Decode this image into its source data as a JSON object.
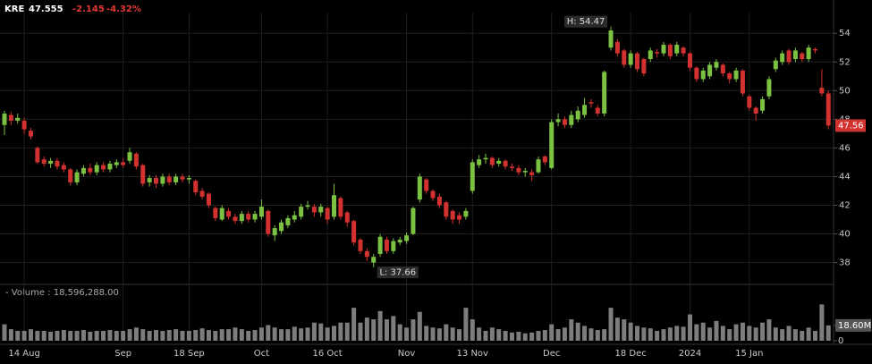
{
  "chart_data": {
    "type": "candlestick",
    "header": {
      "ticker": "KRE",
      "last": "47.555",
      "change": "-2.145",
      "change_pct": "-4.32%"
    },
    "high_label": "H: 54.47",
    "low_label": "L: 37.66",
    "last_price": 47.56,
    "volume_legend": "- Volume : 18,596,288.00",
    "up_color": "#7cc242",
    "down_color": "#d1322f",
    "volume_color": "#7d7d7d",
    "grid": true,
    "ylim": [
      36.6,
      55.2
    ],
    "yticks": [
      38,
      40,
      42,
      44,
      46,
      48,
      50,
      52,
      54
    ],
    "y2lim": [
      0,
      64000000
    ],
    "y2ticks": [
      0,
      {
        "value": 18600000,
        "label": "18.60M"
      }
    ],
    "categories": [
      null,
      null,
      null,
      "14 Aug",
      null,
      null,
      null,
      null,
      null,
      null,
      null,
      null,
      null,
      null,
      null,
      null,
      null,
      null,
      "Sep",
      null,
      null,
      null,
      null,
      null,
      null,
      null,
      null,
      null,
      "18 Sep",
      null,
      null,
      null,
      null,
      null,
      null,
      null,
      null,
      null,
      null,
      "Oct",
      null,
      null,
      null,
      null,
      null,
      null,
      null,
      null,
      null,
      "16 Oct",
      null,
      null,
      null,
      null,
      null,
      null,
      null,
      null,
      null,
      null,
      null,
      "Nov",
      null,
      null,
      null,
      null,
      null,
      null,
      null,
      null,
      null,
      "13 Nov",
      null,
      null,
      null,
      null,
      null,
      null,
      null,
      null,
      null,
      null,
      null,
      "Dec",
      null,
      null,
      null,
      null,
      null,
      null,
      null,
      null,
      null,
      null,
      null,
      "18 Dec",
      null,
      null,
      null,
      null,
      null,
      null,
      null,
      null,
      "2024",
      null,
      null,
      null,
      null,
      null,
      null,
      null,
      null,
      "15 Jan",
      null,
      null,
      null,
      null,
      null,
      null,
      null,
      null,
      null,
      null,
      null,
      null
    ],
    "open": [
      47.6,
      48.3,
      47.9,
      47.9,
      47.2,
      46.0,
      45.2,
      44.9,
      45.1,
      44.8,
      44.5,
      43.6,
      44.2,
      44.6,
      44.3,
      44.8,
      44.5,
      44.8,
      45.0,
      45.1,
      45.6,
      44.8,
      43.6,
      43.9,
      43.5,
      44.0,
      43.6,
      44.0,
      43.8,
      43.7,
      43.0,
      42.8,
      41.8,
      41.0,
      41.6,
      41.2,
      40.9,
      41.4,
      41.0,
      41.2,
      41.6,
      39.9,
      40.2,
      40.6,
      41.0,
      41.2,
      41.9,
      41.9,
      41.5,
      41.8,
      41.2,
      42.5,
      41.5,
      40.9,
      39.6,
      38.8,
      38.0,
      38.6,
      39.6,
      38.8,
      39.4,
      39.5,
      40.0,
      42.4,
      43.8,
      43.0,
      42.6,
      42.2,
      41.6,
      41.3,
      41.2,
      43.0,
      44.8,
      45.2,
      45.3,
      44.9,
      45.1,
      44.7,
      44.6,
      44.3,
      44.3,
      44.3,
      45.4,
      44.6,
      47.8,
      48.0,
      47.6,
      48.0,
      48.3,
      49.2,
      48.8,
      48.4,
      53.0,
      53.4,
      52.8,
      51.8,
      52.6,
      52.2,
      52.2,
      52.7,
      52.6,
      53.2,
      52.6,
      53.0,
      52.6,
      51.6,
      50.8,
      51.0,
      51.6,
      51.8,
      51.2,
      50.8,
      51.4,
      49.6,
      48.8,
      48.6,
      49.6,
      51.5,
      52.0,
      52.8,
      52.2,
      52.6,
      52.2,
      52.9,
      50.2,
      49.8
    ],
    "high": [
      48.6,
      48.5,
      48.4,
      48.1,
      47.4,
      46.1,
      45.4,
      45.3,
      45.3,
      45.0,
      44.6,
      44.5,
      44.8,
      44.9,
      45.0,
      45.0,
      45.1,
      45.2,
      45.3,
      46.0,
      45.7,
      44.9,
      44.1,
      44.1,
      44.2,
      44.2,
      44.2,
      44.2,
      44.1,
      43.8,
      43.2,
      42.9,
      41.9,
      42.0,
      41.8,
      41.4,
      41.6,
      41.6,
      41.6,
      42.4,
      41.7,
      40.6,
      41.0,
      41.3,
      41.6,
      42.1,
      42.3,
      42.1,
      42.1,
      41.9,
      43.5,
      42.6,
      41.6,
      41.0,
      39.7,
      39.0,
      38.6,
      40.0,
      39.8,
      39.7,
      39.8,
      40.1,
      41.9,
      44.2,
      43.9,
      43.1,
      42.8,
      42.3,
      41.7,
      41.5,
      41.8,
      45.2,
      45.5,
      45.6,
      45.4,
      45.3,
      45.2,
      44.9,
      44.8,
      44.6,
      44.5,
      45.4,
      45.5,
      48.0,
      48.4,
      48.2,
      48.6,
      48.9,
      49.5,
      49.4,
      49.0,
      51.4,
      54.47,
      53.6,
      52.9,
      52.8,
      52.7,
      52.3,
      53.0,
      52.9,
      53.4,
      53.3,
      53.4,
      53.1,
      52.7,
      51.7,
      51.6,
      52.0,
      52.2,
      51.9,
      51.3,
      51.6,
      51.5,
      49.7,
      48.9,
      49.6,
      51.0,
      52.3,
      52.8,
      52.9,
      53.0,
      52.7,
      53.2,
      53.0,
      51.5,
      50.0
    ],
    "low": [
      46.9,
      47.6,
      47.7,
      47.0,
      46.6,
      44.9,
      44.7,
      44.6,
      44.5,
      44.3,
      43.4,
      43.4,
      44.0,
      44.1,
      44.1,
      44.3,
      44.3,
      44.6,
      44.6,
      44.9,
      44.5,
      43.3,
      43.3,
      43.2,
      43.3,
      43.4,
      43.4,
      43.6,
      43.5,
      42.7,
      42.4,
      41.8,
      40.9,
      40.9,
      41.0,
      40.7,
      40.7,
      40.8,
      40.8,
      41.0,
      39.8,
      39.5,
      40.0,
      40.4,
      40.8,
      41.0,
      41.7,
      41.2,
      41.2,
      40.7,
      41.0,
      41.0,
      40.5,
      39.2,
      38.6,
      38.1,
      37.66,
      38.4,
      38.6,
      38.6,
      39.2,
      39.3,
      39.9,
      42.2,
      42.8,
      42.3,
      41.8,
      41.0,
      40.7,
      40.7,
      41.0,
      42.8,
      44.6,
      44.9,
      44.6,
      44.7,
      44.5,
      44.4,
      44.1,
      44.0,
      43.7,
      44.2,
      44.8,
      44.5,
      47.5,
      47.4,
      47.4,
      47.8,
      48.1,
      48.8,
      48.2,
      48.2,
      52.8,
      52.4,
      51.6,
      51.6,
      51.3,
      51.0,
      52.0,
      52.3,
      52.4,
      52.2,
      52.4,
      52.4,
      51.4,
      50.6,
      50.6,
      50.8,
      51.4,
      51.0,
      50.5,
      50.6,
      49.6,
      48.6,
      47.9,
      48.4,
      49.4,
      51.3,
      51.8,
      51.8,
      52.0,
      52.0,
      52.0,
      52.6,
      49.6,
      47.3
    ],
    "close": [
      48.4,
      47.9,
      48.1,
      47.3,
      46.8,
      45.0,
      44.9,
      45.1,
      44.7,
      44.5,
      43.6,
      44.3,
      44.6,
      44.3,
      44.8,
      44.5,
      44.9,
      45.0,
      44.8,
      45.7,
      44.7,
      43.5,
      43.9,
      43.5,
      44.0,
      43.6,
      44.0,
      43.8,
      43.9,
      42.9,
      42.6,
      42.0,
      41.1,
      41.8,
      41.2,
      40.9,
      41.4,
      41.0,
      41.4,
      41.9,
      40.0,
      40.4,
      40.8,
      41.1,
      41.3,
      41.9,
      42.0,
      41.5,
      41.9,
      41.0,
      42.7,
      41.2,
      40.8,
      39.4,
      38.8,
      38.4,
      38.4,
      39.8,
      38.8,
      39.5,
      39.6,
      39.9,
      41.8,
      44.0,
      43.0,
      42.5,
      42.0,
      41.2,
      41.0,
      41.0,
      41.6,
      45.0,
      45.2,
      45.3,
      44.8,
      45.1,
      44.7,
      44.6,
      44.3,
      44.4,
      44.1,
      45.2,
      45.0,
      47.8,
      48.0,
      47.6,
      48.3,
      48.6,
      49.0,
      49.1,
      48.4,
      51.3,
      54.2,
      52.6,
      51.8,
      52.6,
      51.5,
      51.2,
      52.8,
      52.6,
      53.2,
      52.4,
      53.2,
      52.6,
      51.6,
      50.8,
      51.4,
      51.8,
      52.0,
      51.2,
      50.8,
      51.4,
      49.8,
      48.8,
      48.4,
      49.4,
      50.8,
      52.1,
      52.6,
      52.0,
      52.8,
      52.2,
      53.0,
      52.8,
      49.8,
      47.56
    ],
    "volume": [
      20000000,
      14000000,
      12000000,
      12000000,
      14000000,
      12000000,
      12000000,
      11000000,
      12000000,
      13000000,
      12000000,
      12000000,
      13000000,
      11000000,
      12000000,
      12000000,
      13000000,
      12000000,
      12000000,
      14000000,
      16000000,
      14000000,
      12000000,
      13000000,
      12000000,
      13000000,
      14000000,
      12000000,
      12000000,
      13000000,
      15000000,
      13000000,
      12000000,
      14000000,
      14000000,
      16000000,
      14000000,
      12000000,
      13000000,
      16000000,
      19000000,
      16000000,
      14000000,
      14000000,
      17000000,
      15000000,
      16000000,
      22000000,
      21000000,
      16000000,
      18000000,
      22000000,
      22000000,
      40000000,
      22000000,
      28000000,
      26000000,
      36000000,
      26000000,
      30000000,
      20000000,
      16000000,
      26000000,
      35000000,
      18000000,
      16000000,
      15000000,
      20000000,
      16000000,
      14000000,
      40000000,
      26000000,
      16000000,
      12000000,
      16000000,
      14000000,
      12000000,
      10000000,
      11000000,
      9000000,
      10000000,
      12000000,
      13000000,
      20000000,
      14000000,
      16000000,
      26000000,
      22000000,
      18000000,
      15000000,
      13000000,
      14000000,
      40000000,
      28000000,
      26000000,
      22000000,
      18000000,
      16000000,
      15000000,
      12000000,
      14000000,
      16000000,
      18000000,
      17000000,
      32000000,
      20000000,
      22000000,
      16000000,
      24000000,
      18000000,
      14000000,
      20000000,
      22000000,
      18000000,
      16000000,
      22000000,
      26000000,
      16000000,
      14000000,
      18000000,
      14000000,
      12000000,
      16000000,
      12000000,
      44000000,
      18596288
    ]
  }
}
